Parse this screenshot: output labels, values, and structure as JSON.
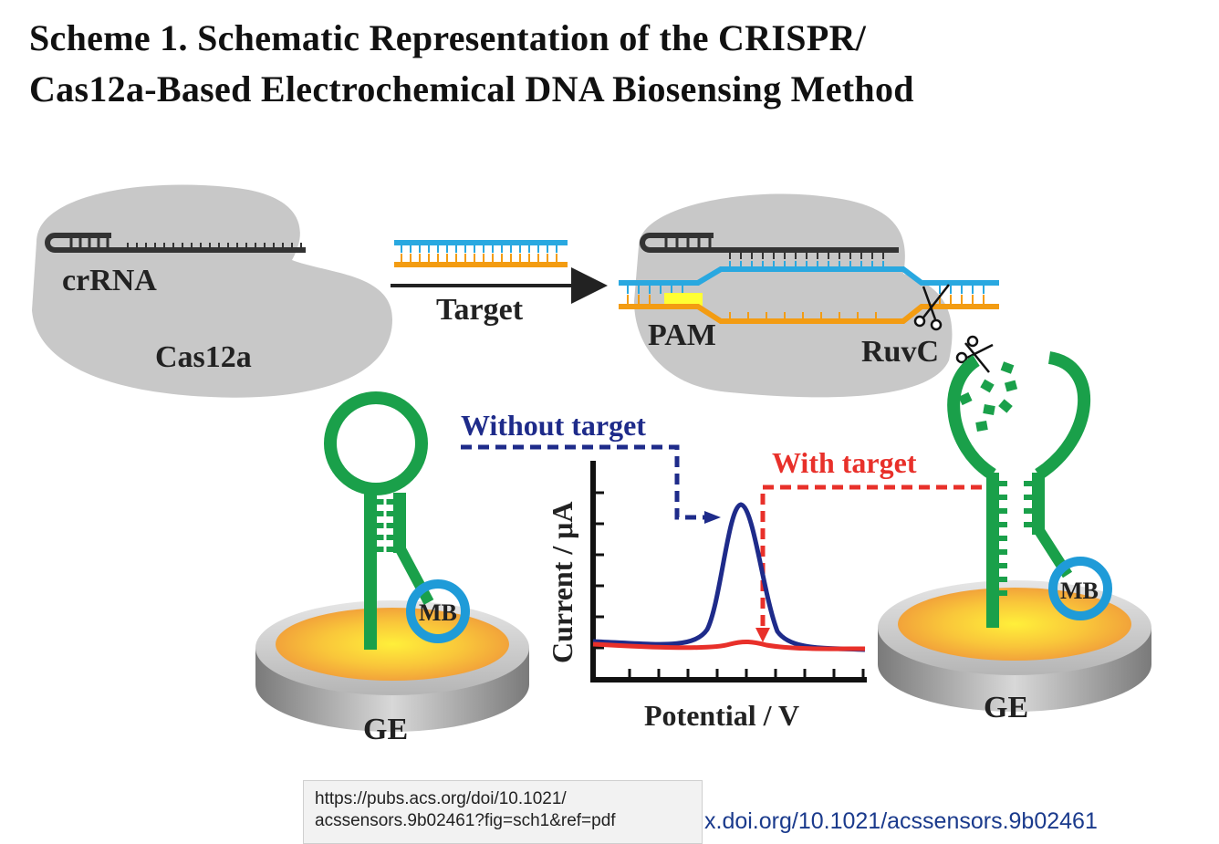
{
  "title": {
    "line1": "Scheme 1. Schematic Representation of the CRISPR/",
    "line2": "Cas12a-Based Electrochemical DNA Biosensing Method"
  },
  "labels": {
    "crrna": "crRNA",
    "cas12a": "Cas12a",
    "target_arrow": "Target",
    "pam": "PAM",
    "ruvc": "RuvC",
    "without_target": "Without target",
    "with_target": "With target",
    "mb_left": "MB",
    "mb_right": "MB",
    "ge_left": "GE",
    "ge_right": "GE",
    "y_axis": "Current / μA",
    "x_axis": "Potential / V"
  },
  "colors": {
    "cas_body": "#c8c8c8",
    "rna": "#333333",
    "target_blue": "#29a8e0",
    "target_orange": "#f39c12",
    "pam_yellow": "#ffff33",
    "hairpin_green": "#1aa04a",
    "mb_ring": "#1f9bd8",
    "without_target_line": "#1e2b8a",
    "with_target_line": "#e8302a",
    "electrode_gold": "#f4b43a"
  },
  "tooltip": {
    "url_line1": "https://pubs.acs.org/doi/10.1021/",
    "url_line2": "acssensors.9b02461?fig=sch1&ref=pdf"
  },
  "footer": {
    "doi_link": "x.doi.org/10.1021/acssensors.9b02461"
  }
}
